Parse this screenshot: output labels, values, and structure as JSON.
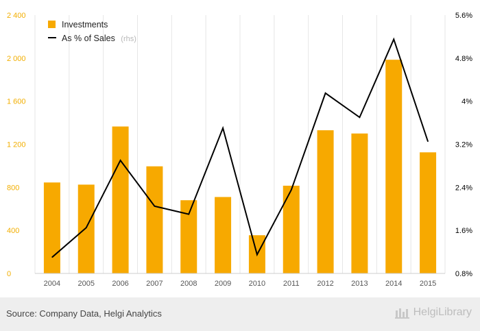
{
  "chart_data": {
    "type": "bar+line",
    "categories": [
      "2004",
      "2005",
      "2006",
      "2007",
      "2008",
      "2009",
      "2010",
      "2011",
      "2012",
      "2013",
      "2014",
      "2015"
    ],
    "series": [
      {
        "name": "Investments",
        "type": "bar",
        "axis": "left",
        "color": "#f7a900",
        "values": [
          845,
          825,
          1365,
          995,
          680,
          710,
          355,
          815,
          1330,
          1300,
          1985,
          1125
        ]
      },
      {
        "name": "As % of Sales",
        "name_suffix": "(rhs)",
        "type": "line",
        "axis": "right",
        "color": "#000000",
        "values": [
          1.1,
          1.65,
          2.9,
          2.05,
          1.9,
          3.5,
          1.15,
          2.35,
          4.15,
          3.7,
          5.15,
          3.25
        ]
      }
    ],
    "y_left": {
      "ylim": [
        0,
        2400
      ],
      "ticks": [
        0,
        400,
        800,
        1200,
        1600,
        2000,
        2400
      ],
      "tick_labels": [
        "0",
        "400",
        "800",
        "1 200",
        "1 600",
        "2 000",
        "2 400"
      ],
      "color": "#f2ae00"
    },
    "y_right": {
      "ylim": [
        0.8,
        5.6
      ],
      "ticks": [
        0.8,
        1.6,
        2.4,
        3.2,
        4.0,
        4.8,
        5.6
      ],
      "tick_labels": [
        "0.8%",
        "1.6%",
        "2.4%",
        "3.2%",
        "4%",
        "4.8%",
        "5.6%"
      ]
    },
    "grid": "vertical",
    "legend": "top-left"
  },
  "footer": {
    "source": "Source: Company Data, Helgi Analytics",
    "brand": "HelgiLibrary"
  }
}
